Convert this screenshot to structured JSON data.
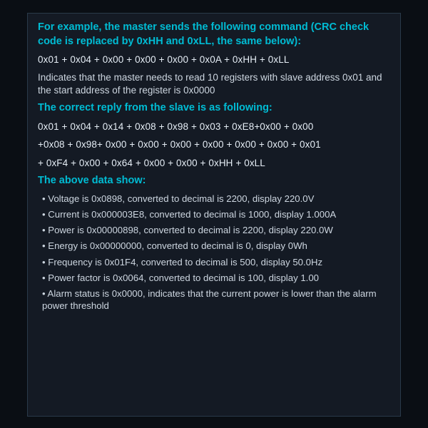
{
  "colors": {
    "page_bg": "#0a0e14",
    "panel_bg": "#141a24",
    "panel_border": "#2a3a4a",
    "heading": "#00bcd4",
    "body_text": "#cdd6e0",
    "bytes_text": "#e5edf5"
  },
  "typography": {
    "heading_fontsize_pt": 11,
    "body_fontsize_pt": 10,
    "heading_weight": "bold",
    "family": "Arial, Helvetica, sans-serif"
  },
  "heading1": "For example, the master sends the following command (CRC check code is replaced by 0xHH and 0xLL, the same below):",
  "bytes1": "0x01 + 0x04 + 0x00 + 0x00 + 0x00 + 0x0A + 0xHH + 0xLL",
  "desc1": "Indicates that the master needs to read 10 registers with slave address 0x01 and the start address of the register is 0x0000",
  "heading2": "The correct reply from the slave is as following:",
  "bytes2a": "0x01 + 0x04 + 0x14 + 0x08 + 0x98 + 0x03 + 0xE8+0x00 + 0x00",
  "bytes2b": "+0x08 + 0x98+ 0x00 + 0x00 + 0x00 + 0x00 + 0x00 + 0x00 + 0x01",
  "bytes2c": "+ 0xF4 + 0x00 + 0x64 + 0x00 + 0x00 + 0xHH + 0xLL",
  "heading3": "The above data show:",
  "bullets": [
    "• Voltage is 0x0898, converted to decimal is 2200, display 220.0V",
    "• Current is 0x000003E8, converted to decimal is 1000, display 1.000A",
    "• Power is 0x00000898, converted to decimal is 2200, display 220.0W",
    "• Energy is 0x00000000, converted to decimal is 0, display 0Wh",
    "• Frequency is 0x01F4, converted to decimal is 500, display 50.0Hz",
    "• Power factor is 0x0064, converted to decimal is 100, display 1.00",
    "• Alarm status is 0x0000, indicates that the current power is lower than the alarm power threshold"
  ]
}
